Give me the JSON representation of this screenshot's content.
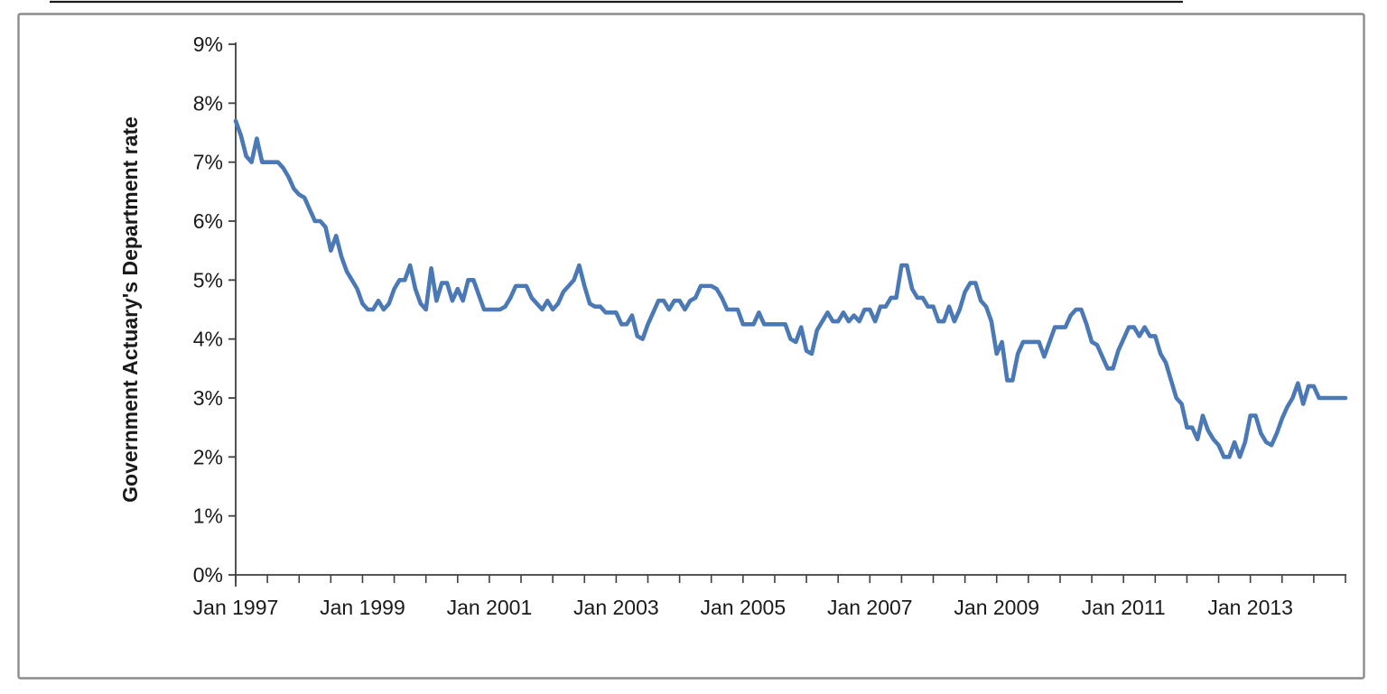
{
  "chart": {
    "line_color": "#4A79B5",
    "axis_color": "#3f3f3f",
    "frame_border_color": "#8c8c8c",
    "label_color": "#1a1a1a"
  },
  "chart_data": {
    "type": "line",
    "title": "",
    "xlabel": "",
    "ylabel": "Government Actuary's Department rate",
    "x_start": "Jan 1997",
    "x_end": "Jul 2014",
    "x_frequency": "monthly",
    "ylim": [
      0,
      9
    ],
    "grid": false,
    "legend": "none",
    "y_tick_labels": [
      "0%",
      "1%",
      "2%",
      "3%",
      "4%",
      "5%",
      "6%",
      "7%",
      "8%",
      "9%"
    ],
    "x_tick_labels": [
      "Jan 1997",
      "Jan 1999",
      "Jan 2001",
      "Jan 2003",
      "Jan 2005",
      "Jan 2007",
      "Jan 2009",
      "Jan 2011",
      "Jan 2013"
    ],
    "minor_x_ticks_every_months": 6,
    "series": [
      {
        "name": "Government Actuary's Department rate",
        "unit": "%",
        "values": [
          7.7,
          7.45,
          7.1,
          7.0,
          7.4,
          7.0,
          7.0,
          7.0,
          7.0,
          6.9,
          6.75,
          6.55,
          6.45,
          6.4,
          6.2,
          6.0,
          6.0,
          5.9,
          5.5,
          5.75,
          5.4,
          5.15,
          5.0,
          4.85,
          4.6,
          4.5,
          4.5,
          4.65,
          4.5,
          4.6,
          4.85,
          5.0,
          5.0,
          5.25,
          4.85,
          4.6,
          4.5,
          5.2,
          4.65,
          4.95,
          4.95,
          4.65,
          4.85,
          4.65,
          5.0,
          5.0,
          4.75,
          4.5,
          4.5,
          4.5,
          4.5,
          4.55,
          4.7,
          4.9,
          4.9,
          4.9,
          4.7,
          4.6,
          4.5,
          4.65,
          4.5,
          4.6,
          4.8,
          4.9,
          5.0,
          5.25,
          4.9,
          4.6,
          4.55,
          4.55,
          4.45,
          4.45,
          4.45,
          4.25,
          4.25,
          4.4,
          4.05,
          4.0,
          4.25,
          4.45,
          4.65,
          4.65,
          4.5,
          4.65,
          4.65,
          4.5,
          4.65,
          4.7,
          4.9,
          4.9,
          4.9,
          4.85,
          4.7,
          4.5,
          4.5,
          4.5,
          4.25,
          4.25,
          4.25,
          4.45,
          4.25,
          4.25,
          4.25,
          4.25,
          4.25,
          4.0,
          3.95,
          4.2,
          3.8,
          3.75,
          4.15,
          4.3,
          4.45,
          4.3,
          4.3,
          4.45,
          4.3,
          4.4,
          4.3,
          4.5,
          4.5,
          4.3,
          4.55,
          4.55,
          4.7,
          4.7,
          5.25,
          5.25,
          4.85,
          4.7,
          4.7,
          4.55,
          4.55,
          4.3,
          4.3,
          4.55,
          4.3,
          4.5,
          4.8,
          4.95,
          4.95,
          4.65,
          4.55,
          4.3,
          3.75,
          3.95,
          3.3,
          3.3,
          3.75,
          3.95,
          3.95,
          3.95,
          3.95,
          3.7,
          3.95,
          4.2,
          4.2,
          4.2,
          4.4,
          4.5,
          4.5,
          4.25,
          3.95,
          3.9,
          3.7,
          3.5,
          3.5,
          3.8,
          4.0,
          4.2,
          4.2,
          4.05,
          4.2,
          4.05,
          4.05,
          3.75,
          3.6,
          3.3,
          3.0,
          2.9,
          2.5,
          2.5,
          2.3,
          2.7,
          2.45,
          2.3,
          2.2,
          2.0,
          2.0,
          2.25,
          2.0,
          2.25,
          2.7,
          2.7,
          2.4,
          2.25,
          2.2,
          2.4,
          2.65,
          2.85,
          3.0,
          3.25,
          2.9,
          3.2,
          3.2,
          3.0,
          3.0,
          3.0,
          3.0,
          3.0,
          3.0
        ]
      }
    ]
  }
}
